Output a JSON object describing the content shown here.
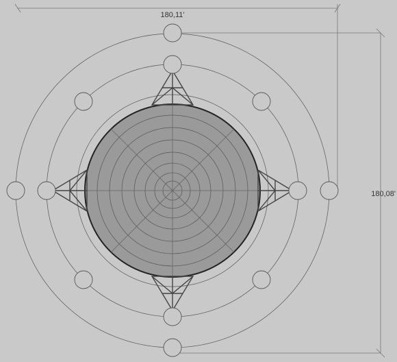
{
  "dimensions": {
    "width": "180,11'",
    "height": "180,08'"
  }
}
